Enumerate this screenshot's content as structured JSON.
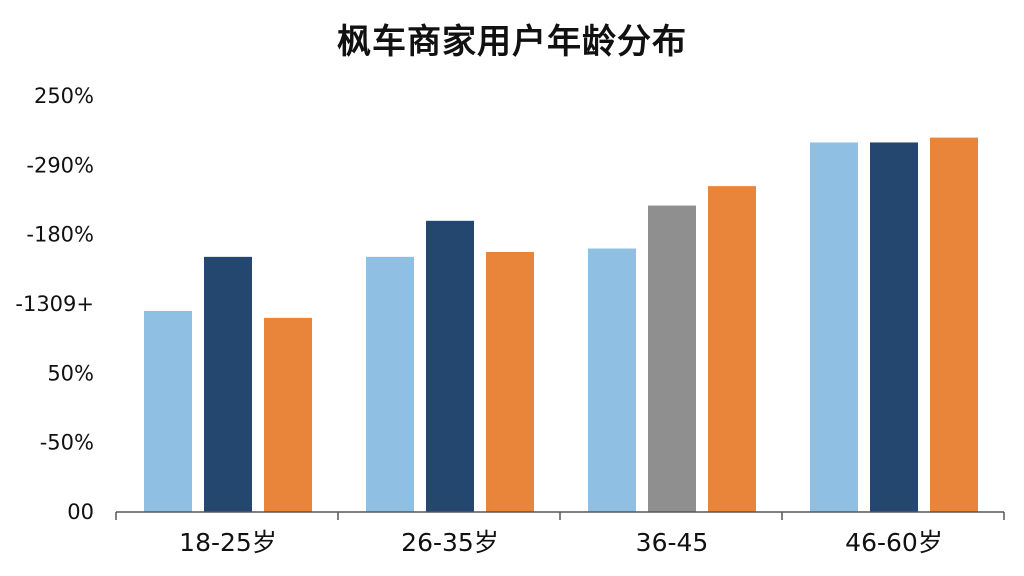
{
  "chart_data": {
    "type": "bar",
    "title": "枫车商家用户年龄分布",
    "categories": [
      "18-25岁",
      "26-35岁",
      "36-45",
      "46-60岁"
    ],
    "y_tick_labels": [
      "00",
      "-50%",
      "50%",
      "-1309+",
      "-180%",
      "-290%",
      "250%"
    ],
    "ylim": [
      0,
      6
    ],
    "grid": false,
    "series": [
      {
        "values": [
          2.9,
          3.68,
          3.8,
          5.33
        ]
      },
      {
        "values": [
          3.68,
          4.2,
          4.42,
          5.33
        ]
      },
      {
        "values": [
          2.8,
          3.75,
          4.7,
          5.4
        ]
      }
    ],
    "bar_colors": [
      [
        "#8fc0e4",
        "#8fc0e4",
        "#8fc0e4",
        "#8fc0e4"
      ],
      [
        "#24476f",
        "#24476f",
        "#8f8f8f",
        "#24476f"
      ],
      [
        "#e8853a",
        "#e8853a",
        "#e8853a",
        "#e8853a"
      ]
    ],
    "axis_color": "#555555"
  }
}
